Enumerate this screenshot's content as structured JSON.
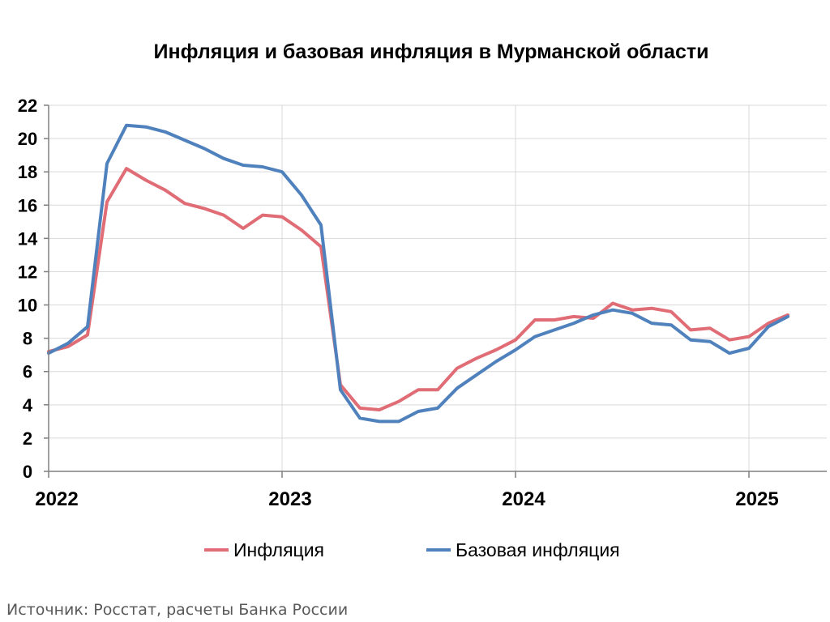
{
  "chart_data": {
    "type": "line",
    "title": "Инфляция и базовая инфляция в Мурманской области",
    "xlabel": "",
    "ylabel": "",
    "ylim": [
      0,
      22
    ],
    "y_ticks": [
      0,
      2,
      4,
      6,
      8,
      10,
      12,
      14,
      16,
      18,
      20,
      22
    ],
    "x_tick_labels": [
      "2022",
      "2023",
      "2024",
      "2025"
    ],
    "x_period_months": 40,
    "x": [
      "2022-01",
      "2022-02",
      "2022-03",
      "2022-04",
      "2022-05",
      "2022-06",
      "2022-07",
      "2022-08",
      "2022-09",
      "2022-10",
      "2022-11",
      "2022-12",
      "2023-01",
      "2023-02",
      "2023-03",
      "2023-04",
      "2023-05",
      "2023-06",
      "2023-07",
      "2023-08",
      "2023-09",
      "2023-10",
      "2023-11",
      "2023-12",
      "2024-01",
      "2024-02",
      "2024-03",
      "2024-04",
      "2024-05",
      "2024-06",
      "2024-07",
      "2024-08",
      "2024-09",
      "2024-10",
      "2024-11",
      "2024-12",
      "2025-01",
      "2025-02",
      "2025-03"
    ],
    "grid": true,
    "legend_position": "bottom",
    "series": [
      {
        "name": "Инфляция",
        "color": "#e06c75",
        "values": [
          7.2,
          7.5,
          8.2,
          16.2,
          18.2,
          17.5,
          16.9,
          16.1,
          15.8,
          15.4,
          14.6,
          15.4,
          15.3,
          14.5,
          13.5,
          5.2,
          3.8,
          3.7,
          4.2,
          4.9,
          4.9,
          6.2,
          6.8,
          7.3,
          7.9,
          9.1,
          9.1,
          9.3,
          9.2,
          10.1,
          9.7,
          9.8,
          9.6,
          8.5,
          8.6,
          7.9,
          8.1,
          8.9,
          9.4
        ]
      },
      {
        "name": "Базовая инфляция",
        "color": "#4f81bd",
        "values": [
          7.1,
          7.7,
          8.7,
          18.5,
          20.8,
          20.7,
          20.4,
          19.9,
          19.4,
          18.8,
          18.4,
          18.3,
          18.0,
          16.6,
          14.8,
          4.9,
          3.2,
          3.0,
          3.0,
          3.6,
          3.8,
          5.0,
          5.8,
          6.6,
          7.3,
          8.1,
          8.5,
          8.9,
          9.4,
          9.7,
          9.5,
          8.9,
          8.8,
          7.9,
          7.8,
          7.1,
          7.4,
          8.7,
          9.3
        ]
      }
    ]
  },
  "source_text": "Источник: Росстат, расчеты Банка России"
}
